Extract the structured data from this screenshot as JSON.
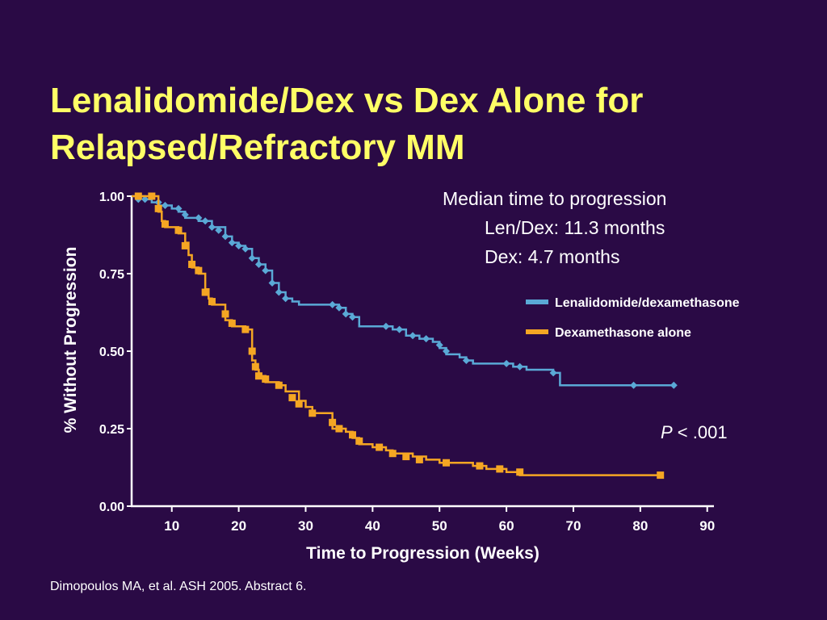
{
  "slide": {
    "title_line1": "Lenalidomide/Dex vs Dex Alone for",
    "title_line2": "Relapsed/Refractory MM",
    "median_heading": "Median time to progression",
    "median_lendex": "Len/Dex: 11.3 months",
    "median_dex": "Dex: 4.7 months",
    "p_value_italic": "P",
    "p_value_rest": " < .001",
    "citation": "Dimopoulos MA, et al. ASH 2005. Abstract 6."
  },
  "chart_data": {
    "type": "line",
    "xlabel": "Time to Progression (Weeks)",
    "ylabel": "% Without Progression",
    "xlim": [
      4,
      91
    ],
    "ylim": [
      0,
      1
    ],
    "x_ticks": [
      10,
      20,
      30,
      40,
      50,
      60,
      70,
      80,
      90
    ],
    "y_ticks": [
      0.0,
      0.25,
      0.5,
      0.75,
      1.0
    ],
    "y_tick_labels": [
      "0.00",
      "0.25",
      "0.50",
      "0.75",
      "1.00"
    ],
    "legend_position": "right",
    "grid": false,
    "series": [
      {
        "name": "Lenalidomide/dexamethasone",
        "color": "#5aa9d6",
        "points": [
          [
            4,
            1.0
          ],
          [
            6,
            0.99
          ],
          [
            7,
            0.98
          ],
          [
            8,
            0.97
          ],
          [
            10,
            0.96
          ],
          [
            11,
            0.95
          ],
          [
            12,
            0.93
          ],
          [
            14,
            0.92
          ],
          [
            16,
            0.9
          ],
          [
            18,
            0.87
          ],
          [
            19,
            0.85
          ],
          [
            20,
            0.84
          ],
          [
            21,
            0.83
          ],
          [
            22,
            0.8
          ],
          [
            23,
            0.78
          ],
          [
            24,
            0.76
          ],
          [
            25,
            0.72
          ],
          [
            26,
            0.69
          ],
          [
            27,
            0.67
          ],
          [
            28,
            0.66
          ],
          [
            29,
            0.65
          ],
          [
            34,
            0.65
          ],
          [
            35,
            0.64
          ],
          [
            36,
            0.62
          ],
          [
            37,
            0.61
          ],
          [
            38,
            0.58
          ],
          [
            41,
            0.58
          ],
          [
            43,
            0.57
          ],
          [
            45,
            0.55
          ],
          [
            47,
            0.54
          ],
          [
            49,
            0.53
          ],
          [
            50,
            0.51
          ],
          [
            51,
            0.49
          ],
          [
            53,
            0.48
          ],
          [
            54,
            0.47
          ],
          [
            55,
            0.46
          ],
          [
            60,
            0.46
          ],
          [
            61,
            0.45
          ],
          [
            63,
            0.44
          ],
          [
            67,
            0.43
          ],
          [
            68,
            0.39
          ],
          [
            85,
            0.39
          ]
        ],
        "markers": [
          [
            5,
            0.99
          ],
          [
            6,
            0.99
          ],
          [
            8,
            0.98
          ],
          [
            9,
            0.97
          ],
          [
            11,
            0.96
          ],
          [
            12,
            0.94
          ],
          [
            14,
            0.93
          ],
          [
            15,
            0.92
          ],
          [
            16,
            0.9
          ],
          [
            17,
            0.89
          ],
          [
            18,
            0.87
          ],
          [
            19,
            0.85
          ],
          [
            20,
            0.84
          ],
          [
            21,
            0.83
          ],
          [
            22,
            0.8
          ],
          [
            23,
            0.78
          ],
          [
            24,
            0.76
          ],
          [
            25,
            0.72
          ],
          [
            26,
            0.69
          ],
          [
            27,
            0.67
          ],
          [
            34,
            0.65
          ],
          [
            35,
            0.64
          ],
          [
            36,
            0.62
          ],
          [
            37,
            0.61
          ],
          [
            42,
            0.58
          ],
          [
            44,
            0.57
          ],
          [
            46,
            0.55
          ],
          [
            48,
            0.54
          ],
          [
            50,
            0.52
          ],
          [
            51,
            0.5
          ],
          [
            54,
            0.47
          ],
          [
            60,
            0.46
          ],
          [
            62,
            0.45
          ],
          [
            67,
            0.43
          ],
          [
            79,
            0.39
          ],
          [
            85,
            0.39
          ]
        ]
      },
      {
        "name": "Dexamethasone alone",
        "color": "#f5a623",
        "points": [
          [
            4,
            1.0
          ],
          [
            8,
            0.99
          ],
          [
            8,
            0.95
          ],
          [
            8.5,
            0.92
          ],
          [
            9,
            0.9
          ],
          [
            10,
            0.9
          ],
          [
            11,
            0.88
          ],
          [
            12,
            0.85
          ],
          [
            12.5,
            0.81
          ],
          [
            13,
            0.77
          ],
          [
            14,
            0.75
          ],
          [
            15,
            0.73
          ],
          [
            15,
            0.7
          ],
          [
            15.5,
            0.67
          ],
          [
            16,
            0.65
          ],
          [
            18,
            0.64
          ],
          [
            18,
            0.6
          ],
          [
            19,
            0.58
          ],
          [
            21,
            0.57
          ],
          [
            22,
            0.55
          ],
          [
            22,
            0.47
          ],
          [
            22.5,
            0.44
          ],
          [
            23,
            0.42
          ],
          [
            24,
            0.4
          ],
          [
            26,
            0.39
          ],
          [
            27,
            0.37
          ],
          [
            29,
            0.34
          ],
          [
            30,
            0.32
          ],
          [
            31,
            0.3
          ],
          [
            34,
            0.29
          ],
          [
            34,
            0.25
          ],
          [
            36,
            0.24
          ],
          [
            37,
            0.22
          ],
          [
            38,
            0.2
          ],
          [
            40,
            0.19
          ],
          [
            42,
            0.18
          ],
          [
            43,
            0.17
          ],
          [
            46,
            0.16
          ],
          [
            48,
            0.15
          ],
          [
            50,
            0.14
          ],
          [
            54,
            0.14
          ],
          [
            55,
            0.13
          ],
          [
            57,
            0.12
          ],
          [
            60,
            0.11
          ],
          [
            62,
            0.1
          ],
          [
            83,
            0.1
          ]
        ],
        "markers": [
          [
            5,
            1.0
          ],
          [
            7,
            1.0
          ],
          [
            8,
            0.96
          ],
          [
            9,
            0.91
          ],
          [
            11,
            0.89
          ],
          [
            12,
            0.84
          ],
          [
            13,
            0.78
          ],
          [
            14,
            0.76
          ],
          [
            15,
            0.69
          ],
          [
            16,
            0.66
          ],
          [
            18,
            0.62
          ],
          [
            19,
            0.59
          ],
          [
            21,
            0.57
          ],
          [
            22,
            0.5
          ],
          [
            22.5,
            0.45
          ],
          [
            23,
            0.42
          ],
          [
            24,
            0.41
          ],
          [
            26,
            0.39
          ],
          [
            28,
            0.35
          ],
          [
            29,
            0.33
          ],
          [
            31,
            0.3
          ],
          [
            34,
            0.27
          ],
          [
            35,
            0.25
          ],
          [
            37,
            0.23
          ],
          [
            38,
            0.21
          ],
          [
            41,
            0.19
          ],
          [
            43,
            0.17
          ],
          [
            45,
            0.16
          ],
          [
            47,
            0.15
          ],
          [
            51,
            0.14
          ],
          [
            56,
            0.13
          ],
          [
            59,
            0.12
          ],
          [
            62,
            0.11
          ],
          [
            83,
            0.1
          ]
        ]
      }
    ]
  }
}
